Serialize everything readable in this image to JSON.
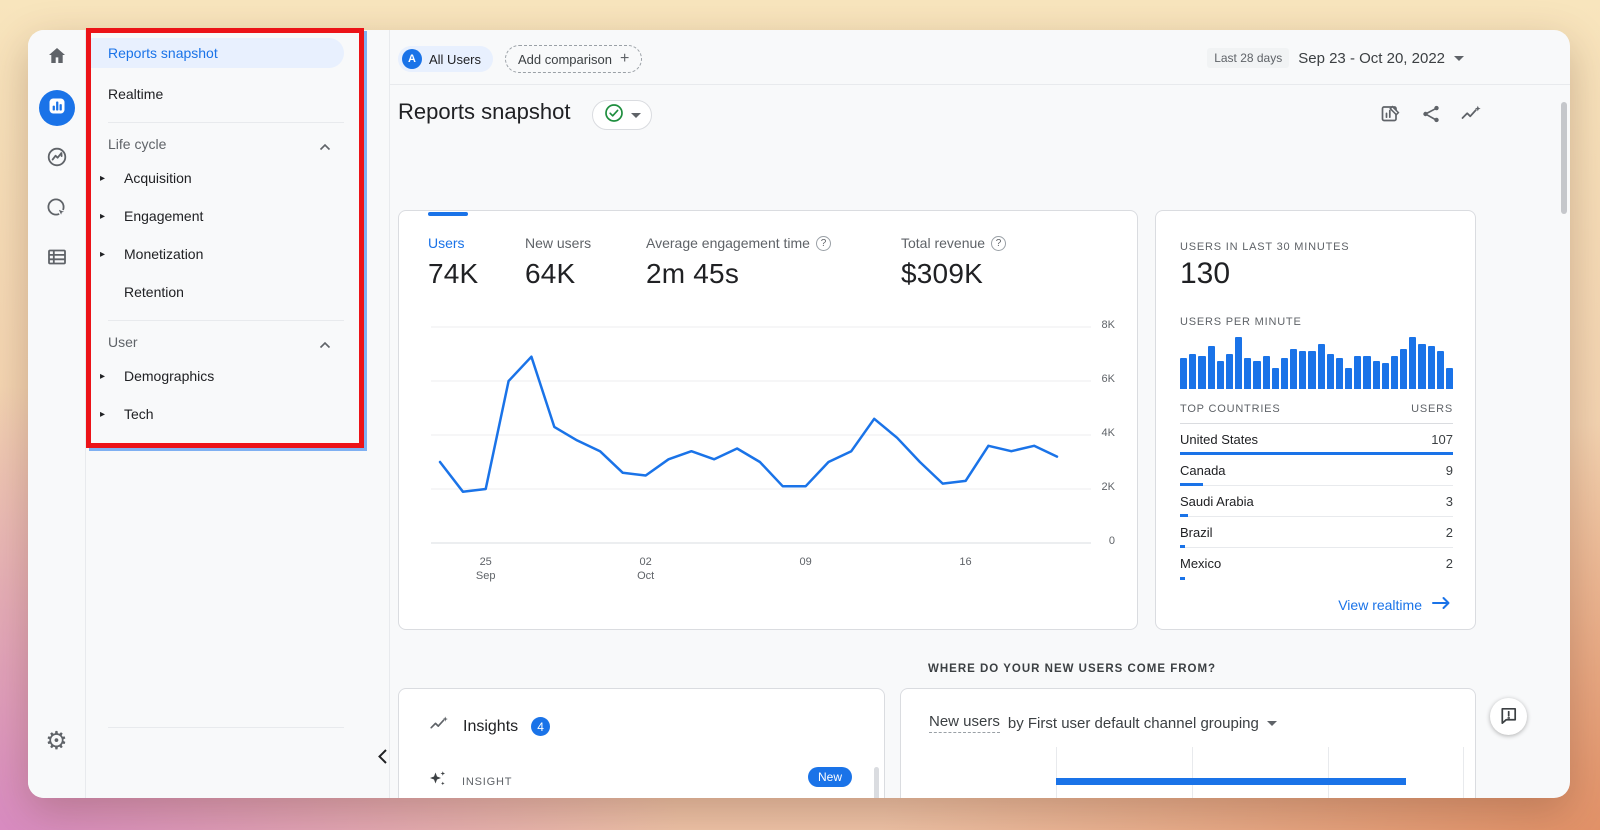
{
  "topbar": {
    "avatar_letter": "A",
    "all_users_label": "All Users",
    "add_comparison_label": "Add comparison",
    "date_preset": "Last 28 days",
    "date_range": "Sep 23 - Oct 20, 2022"
  },
  "header": {
    "title": "Reports snapshot"
  },
  "rail": {
    "items": [
      "home",
      "reports",
      "explore",
      "advertising",
      "library",
      "settings"
    ],
    "selected": "reports"
  },
  "nav": {
    "items": [
      {
        "label": "Reports snapshot",
        "type": "link",
        "selected": true
      },
      {
        "label": "Realtime",
        "type": "link"
      },
      {
        "label": "Life cycle",
        "type": "section"
      },
      {
        "label": "Acquisition",
        "type": "expandable",
        "indent": true
      },
      {
        "label": "Engagement",
        "type": "expandable",
        "indent": true
      },
      {
        "label": "Monetization",
        "type": "expandable",
        "indent": true
      },
      {
        "label": "Retention",
        "type": "link",
        "indent": true
      },
      {
        "label": "User",
        "type": "section"
      },
      {
        "label": "Demographics",
        "type": "expandable",
        "indent": true
      },
      {
        "label": "Tech",
        "type": "expandable",
        "indent": true
      }
    ]
  },
  "metrics": [
    {
      "label": "Users",
      "value": "74K",
      "active": true
    },
    {
      "label": "New users",
      "value": "64K"
    },
    {
      "label": "Average engagement time",
      "value": "2m 45s",
      "help": true
    },
    {
      "label": "Total revenue",
      "value": "$309K",
      "help": true
    }
  ],
  "chart_data": [
    {
      "id": "users-trend",
      "type": "line",
      "title": "Users over time",
      "x_range": "Sep 23 - Oct 20, 2022, daily points",
      "series": [
        {
          "name": "Users",
          "values": [
            3000,
            1900,
            2000,
            6000,
            6900,
            4300,
            3800,
            3400,
            2600,
            2500,
            3100,
            3400,
            3100,
            3500,
            3000,
            2100,
            2100,
            3000,
            3400,
            4600,
            3900,
            3000,
            2200,
            2300,
            3600,
            3400,
            3600,
            3200
          ]
        }
      ],
      "x_ticks": [
        {
          "index": 2,
          "line1": "25",
          "line2": "Sep"
        },
        {
          "index": 9,
          "line1": "02",
          "line2": "Oct"
        },
        {
          "index": 16,
          "line1": "09"
        },
        {
          "index": 23,
          "line1": "16"
        }
      ],
      "y_ticks": [
        "8K",
        "6K",
        "4K",
        "2K",
        "0"
      ],
      "ylim": [
        0,
        8000
      ],
      "grid": true,
      "color": "#1a73e8"
    },
    {
      "id": "users-per-minute",
      "type": "bar",
      "title": "USERS PER MINUTE",
      "values": [
        65,
        75,
        70,
        90,
        60,
        75,
        110,
        65,
        60,
        70,
        45,
        65,
        85,
        80,
        80,
        95,
        75,
        65,
        45,
        70,
        70,
        60,
        55,
        70,
        85,
        110,
        95,
        90,
        80,
        45
      ],
      "ymax": 110,
      "color": "#1a73e8"
    },
    {
      "id": "top-countries",
      "type": "table",
      "columns": [
        "TOP COUNTRIES",
        "USERS"
      ],
      "rows": [
        {
          "country": "United States",
          "users": 107
        },
        {
          "country": "Canada",
          "users": 9
        },
        {
          "country": "Saudi Arabia",
          "users": 3
        },
        {
          "country": "Brazil",
          "users": 2
        },
        {
          "country": "Mexico",
          "users": 2
        }
      ],
      "bar_max": 107,
      "color": "#1a73e8"
    },
    {
      "id": "new-users-by-channel",
      "type": "bar",
      "orientation": "horizontal",
      "title": "New users by First user default channel grouping",
      "note": "chart cropped at bottom of screenshot; one bar partially visible",
      "first_bar_fraction": 0.86,
      "color": "#1a73e8"
    }
  ],
  "realtime": {
    "users_30min_label": "USERS IN LAST 30 MINUTES",
    "users_30min_value": "130",
    "per_minute_label": "USERS PER MINUTE",
    "countries_col": "TOP COUNTRIES",
    "users_col": "USERS",
    "view_realtime_label": "View realtime"
  },
  "insights": {
    "title": "Insights",
    "badge_count": "4",
    "row_label": "INSIGHT",
    "new_badge": "New"
  },
  "new_users_section": {
    "heading": "WHERE DO YOUR NEW USERS COME FROM?",
    "dropdown_prefix": "New users",
    "dropdown_rest": " by First user default channel grouping"
  },
  "colors": {
    "accent": "#1a73e8",
    "annotation": "#ec1318",
    "success": "#1e8e3e"
  }
}
